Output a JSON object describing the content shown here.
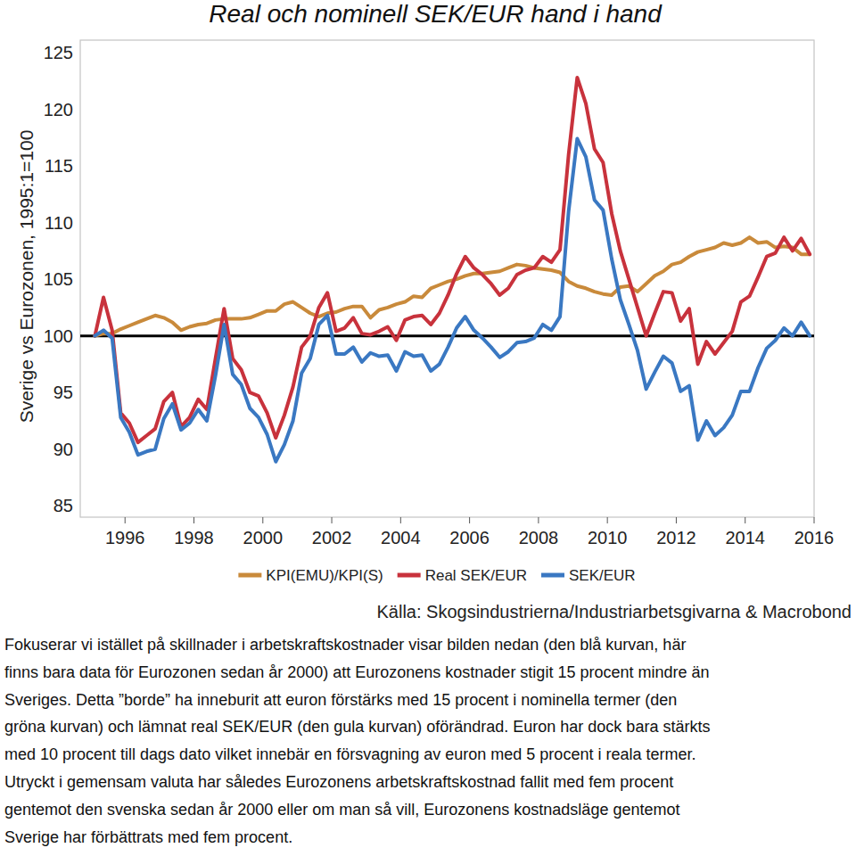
{
  "chart_data": {
    "type": "line",
    "title": "Real och nominell SEK/EUR hand i hand",
    "y_label": "Sverige vs Eurozonen, 1995:1=100",
    "source": "Källa: Skogsindustrierna/Industriarbetsgivarna & Macrobond",
    "x": [
      1995.125,
      1995.375,
      1995.625,
      1995.875,
      1996.125,
      1996.375,
      1996.625,
      1996.875,
      1997.125,
      1997.375,
      1997.625,
      1997.875,
      1998.125,
      1998.375,
      1998.625,
      1998.875,
      1999.125,
      1999.375,
      1999.625,
      1999.875,
      2000.125,
      2000.375,
      2000.625,
      2000.875,
      2001.125,
      2001.375,
      2001.625,
      2001.875,
      2002.125,
      2002.375,
      2002.625,
      2002.875,
      2003.125,
      2003.375,
      2003.625,
      2003.875,
      2004.125,
      2004.375,
      2004.625,
      2004.875,
      2005.125,
      2005.375,
      2005.625,
      2005.875,
      2006.125,
      2006.375,
      2006.625,
      2006.875,
      2007.125,
      2007.375,
      2007.625,
      2007.875,
      2008.125,
      2008.375,
      2008.625,
      2008.875,
      2009.125,
      2009.375,
      2009.625,
      2009.875,
      2010.125,
      2010.375,
      2010.625,
      2010.875,
      2011.125,
      2011.375,
      2011.625,
      2011.875,
      2012.125,
      2012.375,
      2012.625,
      2012.875,
      2013.125,
      2013.375,
      2013.625,
      2013.875,
      2014.125,
      2014.375,
      2014.625,
      2014.875,
      2015.125,
      2015.375,
      2015.625,
      2015.875
    ],
    "xlim": [
      1994.7,
      2016
    ],
    "xticks": [
      1996,
      1998,
      2000,
      2002,
      2004,
      2006,
      2008,
      2010,
      2012,
      2014,
      2016
    ],
    "ylim": [
      84,
      126.1
    ],
    "yticks": [
      85,
      90,
      95,
      100,
      105,
      110,
      115,
      120,
      125
    ],
    "grid": false,
    "legend": "bottom",
    "reference_value": 100,
    "series": [
      {
        "name": "KPI(EMU)/KPI(S)",
        "color": "#c98a3b",
        "values": [
          100,
          100.2,
          100.2,
          100.6,
          100.9,
          101.2,
          101.5,
          101.8,
          101.6,
          101.2,
          100.5,
          100.8,
          101.0,
          101.1,
          101.4,
          101.5,
          101.5,
          101.5,
          101.6,
          101.9,
          102.2,
          102.2,
          102.8,
          103.0,
          102.5,
          102.0,
          101.7,
          102.0,
          102.1,
          102.4,
          102.6,
          102.6,
          101.6,
          102.3,
          102.5,
          102.8,
          103.0,
          103.5,
          103.4,
          104.2,
          104.5,
          104.8,
          105.0,
          105.3,
          105.5,
          105.5,
          105.6,
          105.7,
          106.0,
          106.3,
          106.2,
          106.0,
          105.9,
          105.8,
          105.6,
          104.8,
          104.4,
          104.2,
          103.9,
          103.7,
          103.6,
          104.3,
          104.4,
          103.9,
          104.6,
          105.3,
          105.7,
          106.3,
          106.5,
          107.0,
          107.4,
          107.6,
          107.8,
          108.2,
          108.0,
          108.2,
          108.7,
          108.2,
          108.3,
          107.8,
          107.9,
          107.8,
          107.2,
          107.2
        ]
      },
      {
        "name": "Real SEK/EUR",
        "color": "#c8323c",
        "values": [
          100,
          103.4,
          100.5,
          93.2,
          92.3,
          90.6,
          91.2,
          91.8,
          94.2,
          95.0,
          92.0,
          92.8,
          94.4,
          93.5,
          98.0,
          102.4,
          98.0,
          97.0,
          95.0,
          94.7,
          93.2,
          91.0,
          93.0,
          95.5,
          99.0,
          100.0,
          102.5,
          103.8,
          100.4,
          100.7,
          101.6,
          100.2,
          100.1,
          100.4,
          100.8,
          99.6,
          101.4,
          101.7,
          101.8,
          101.0,
          102.0,
          103.6,
          105.5,
          107.0,
          106.0,
          105.4,
          104.6,
          103.6,
          104.2,
          105.4,
          105.8,
          106.0,
          107.0,
          106.5,
          107.6,
          116.0,
          122.8,
          120.5,
          116.5,
          115.3,
          110.8,
          107.5,
          105.0,
          102.5,
          100.0,
          102.0,
          103.9,
          103.8,
          101.3,
          102.4,
          97.5,
          99.5,
          98.4,
          99.4,
          100.4,
          103.0,
          103.5,
          105.2,
          107.0,
          107.3,
          108.7,
          107.5,
          108.6,
          107.2
        ]
      },
      {
        "name": "SEK/EUR",
        "color": "#3a78c2",
        "values": [
          100,
          100.5,
          99.8,
          92.8,
          91.5,
          89.5,
          89.8,
          90.0,
          92.7,
          94.0,
          91.7,
          92.3,
          93.5,
          92.5,
          96.5,
          101.0,
          96.6,
          95.7,
          93.6,
          92.8,
          91.3,
          88.9,
          90.4,
          92.5,
          96.7,
          98.0,
          101.0,
          101.8,
          98.4,
          98.4,
          99.0,
          97.7,
          98.5,
          98.2,
          98.3,
          96.9,
          98.6,
          98.2,
          98.3,
          96.9,
          97.5,
          99.0,
          100.7,
          101.7,
          100.5,
          99.8,
          99.0,
          98.1,
          98.6,
          99.4,
          99.5,
          99.8,
          101.0,
          100.5,
          101.7,
          111.0,
          117.4,
          115.8,
          112.0,
          111.1,
          106.8,
          103.2,
          101.0,
          98.7,
          95.3,
          96.8,
          98.2,
          97.6,
          95.1,
          95.6,
          90.8,
          92.5,
          91.2,
          91.9,
          93.0,
          95.1,
          95.1,
          97.2,
          98.9,
          99.6,
          100.7,
          100.0,
          101.2,
          100.0
        ]
      }
    ]
  },
  "text_lines": [
    "Fokuserar vi istället på skillnader i arbetskraftskostnader visar bilden nedan (den blå kurvan, här",
    "finns bara data för Eurozonen sedan år 2000) att Eurozonens kostnader stigit 15 procent mindre än",
    "Sveriges. Detta ”borde” ha inneburit att euron förstärks med 15 procent i nominella termer (den",
    "gröna kurvan) och lämnat real SEK/EUR (den gula kurvan) oförändrad. Euron har dock bara stärkts",
    "med 10 procent till dags dato vilket innebär en försvagning av euron med 5 procent i reala termer.",
    "Utryckt i gemensam valuta har således Eurozonens arbetskraftskostnad fallit med fem procent",
    "gentemot den svenska sedan år 2000 eller om man så vill, Eurozonens kostnadsläge gentemot",
    "Sverige har förbättrats med fem procent."
  ]
}
